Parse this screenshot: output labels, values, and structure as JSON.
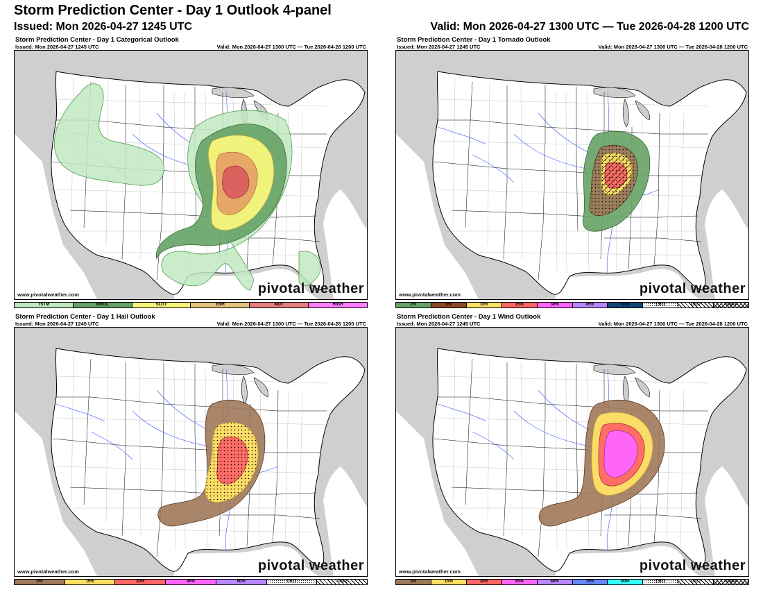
{
  "header": {
    "title": "Storm Prediction Center - Day 1 Outlook 4-panel",
    "issued": "Issued: Mon 2026-04-27 1245 UTC",
    "valid": "Valid: Mon 2026-04-27 1300 UTC — Tue 2026-04-28 1200 UTC"
  },
  "panels": [
    {
      "title": "Storm Prediction Center - Day 1 Categorical Outlook",
      "issued": "Issued: Mon 2026-04-27 1245 UTC",
      "valid": "Valid: Mon 2026-04-27 1300 UTC — Tue 2026-04-28 1200 UTC",
      "source": "www.pivotalweather.com",
      "watermark": "pivotal weather",
      "legend": [
        {
          "label": "TSTM",
          "color": "#c1e9c1"
        },
        {
          "label": "MRGL",
          "color": "#66a366"
        },
        {
          "label": "SLGT",
          "color": "#f6f67b"
        },
        {
          "label": "ENH",
          "color": "#e6c27f"
        },
        {
          "label": "MDT",
          "color": "#e67f7f"
        },
        {
          "label": "HIGH",
          "color": "#ff7fff"
        }
      ]
    },
    {
      "title": "Storm Prediction Center - Day 1 Tornado Outlook",
      "issued": "Issued: Mon 2026-04-27 1245 UTC",
      "valid": "Valid: Mon 2026-04-27 1300 UTC — Tue 2026-04-28 1200 UTC",
      "source": "www.pivotalweather.com",
      "watermark": "pivotal weather",
      "legend": [
        {
          "label": "2%",
          "color": "#66a366"
        },
        {
          "label": "5%",
          "color": "#8b4726"
        },
        {
          "label": "10%",
          "color": "#ffe066"
        },
        {
          "label": "15%",
          "color": "#ff6666"
        },
        {
          "label": "30%",
          "color": "#ff66ff"
        },
        {
          "label": "45%",
          "color": "#bb88ff"
        },
        {
          "label": "60%",
          "color": "#114477"
        },
        {
          "label": "CIG1",
          "color": "pattern-dots"
        },
        {
          "label": "CIG2",
          "color": "pattern-hatch"
        },
        {
          "label": "CIG3",
          "color": "pattern-cross"
        }
      ]
    },
    {
      "title": "Storm Prediction Center - Day 1 Hail Outlook",
      "issued": "Issued: Mon 2026-04-27 1245 UTC",
      "valid": "Valid: Mon 2026-04-27 1300 UTC — Tue 2026-04-28 1200 UTC",
      "source": "www.pivotalweather.com",
      "watermark": "pivotal weather",
      "legend": [
        {
          "label": "5%",
          "color": "#a0785a"
        },
        {
          "label": "15%",
          "color": "#ffe066"
        },
        {
          "label": "30%",
          "color": "#ff6666"
        },
        {
          "label": "45%",
          "color": "#ff66ff"
        },
        {
          "label": "60%",
          "color": "#bb88ff"
        },
        {
          "label": "CIG1",
          "color": "pattern-dots"
        },
        {
          "label": "CIG2",
          "color": "pattern-hatch"
        }
      ]
    },
    {
      "title": "Storm Prediction Center - Day 1 Wind Outlook",
      "issued": "Issued: Mon 2026-04-27 1245 UTC",
      "valid": "Valid: Mon 2026-04-27 1300 UTC — Tue 2026-04-28 1200 UTC",
      "source": "www.pivotalweather.com",
      "watermark": "pivotal weather",
      "legend": [
        {
          "label": "5%",
          "color": "#a0785a"
        },
        {
          "label": "15%",
          "color": "#ffe066"
        },
        {
          "label": "30%",
          "color": "#ff6666"
        },
        {
          "label": "45%",
          "color": "#ff66ff"
        },
        {
          "label": "60%",
          "color": "#bb88ff"
        },
        {
          "label": "75%",
          "color": "#6688ff"
        },
        {
          "label": "90%",
          "color": "#33ffff"
        },
        {
          "label": "CIG1",
          "color": "pattern-dots"
        },
        {
          "label": "CIG2",
          "color": "pattern-hatch"
        },
        {
          "label": "CIG3",
          "color": "pattern-cross"
        }
      ]
    }
  ]
}
